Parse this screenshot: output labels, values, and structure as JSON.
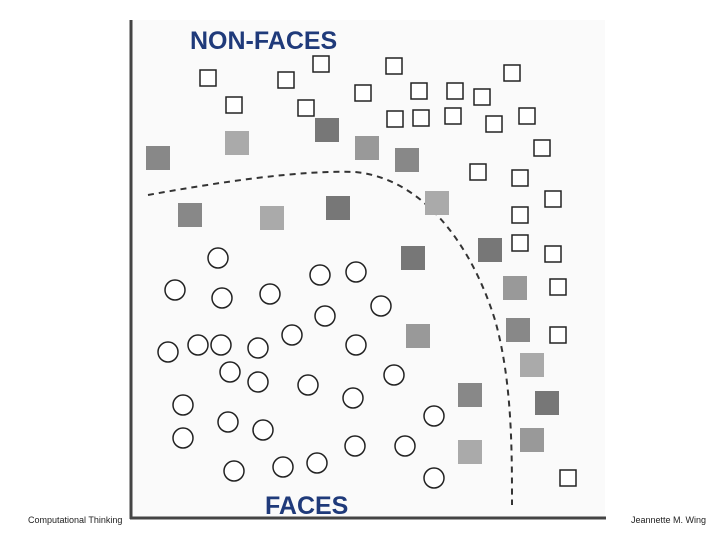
{
  "diagram": {
    "top_label": "NON-FACES",
    "bottom_label": "FACES"
  },
  "footer": {
    "left": "Computational Thinking",
    "right": "Jeannette M. Wing"
  }
}
